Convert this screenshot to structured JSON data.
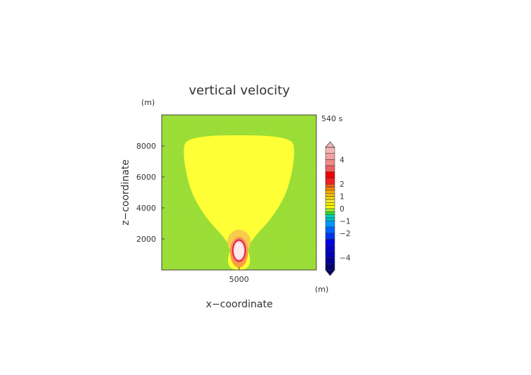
{
  "chart_data": {
    "type": "heatmap",
    "title": "vertical velocity",
    "time_label": "540 s",
    "xlabel": "x−coordinate",
    "ylabel": "z−coordinate",
    "x_unit": "(m)",
    "y_unit": "(m)",
    "xlim": [
      700,
      9300
    ],
    "ylim": [
      0,
      10000
    ],
    "x_ticks": [
      {
        "value": 5000,
        "label": "5000"
      }
    ],
    "y_ticks": [
      {
        "value": 2000,
        "label": "2000"
      },
      {
        "value": 4000,
        "label": "4000"
      },
      {
        "value": 6000,
        "label": "6000"
      },
      {
        "value": 8000,
        "label": "8000"
      }
    ],
    "colorbar": {
      "range": [
        -5,
        5
      ],
      "labels": [
        {
          "value": 4,
          "label": "4"
        },
        {
          "value": 2,
          "label": "2"
        },
        {
          "value": 1,
          "label": "1"
        },
        {
          "value": 0,
          "label": "0"
        },
        {
          "value": -1,
          "label": "−1"
        },
        {
          "value": -2,
          "label": "−2"
        },
        {
          "value": -4,
          "label": "−4"
        }
      ],
      "bands": [
        {
          "from": 4.5,
          "to": 5,
          "color": "#f5b5b5"
        },
        {
          "from": 4,
          "to": 4.5,
          "color": "#f2a0a0"
        },
        {
          "from": 3.5,
          "to": 4,
          "color": "#ee8a8a"
        },
        {
          "from": 3,
          "to": 3.5,
          "color": "#ee6060"
        },
        {
          "from": 2.5,
          "to": 3,
          "color": "#ee0000"
        },
        {
          "from": 2,
          "to": 2.5,
          "color": "#ee2020"
        },
        {
          "from": 1.75,
          "to": 2,
          "color": "#f05a1e"
        },
        {
          "from": 1.5,
          "to": 1.75,
          "color": "#f58a00"
        },
        {
          "from": 1.25,
          "to": 1.5,
          "color": "#f5a800"
        },
        {
          "from": 1,
          "to": 1.25,
          "color": "#f5bd1e"
        },
        {
          "from": 0.75,
          "to": 1,
          "color": "#f5d800"
        },
        {
          "from": 0.5,
          "to": 0.75,
          "color": "#f0e832"
        },
        {
          "from": 0.25,
          "to": 0.5,
          "color": "#f5f000"
        },
        {
          "from": 0,
          "to": 0.25,
          "color": "#ffff00"
        },
        {
          "from": -0.25,
          "to": 0,
          "color": "#a0e632"
        },
        {
          "from": -0.5,
          "to": -0.25,
          "color": "#32dc32"
        },
        {
          "from": -0.75,
          "to": -0.5,
          "color": "#00d2c8"
        },
        {
          "from": -1,
          "to": -0.75,
          "color": "#00bebe"
        },
        {
          "from": -1.5,
          "to": -1,
          "color": "#0096ff"
        },
        {
          "from": -2,
          "to": -1.5,
          "color": "#0064ff"
        },
        {
          "from": -2.5,
          "to": -2,
          "color": "#0032f0"
        },
        {
          "from": -3,
          "to": -2.5,
          "color": "#0000e6"
        },
        {
          "from": -3.5,
          "to": -3,
          "color": "#0000c8"
        },
        {
          "from": -4,
          "to": -3.5,
          "color": "#0000b4"
        },
        {
          "from": -4.5,
          "to": -4,
          "color": "#000096"
        },
        {
          "from": -5,
          "to": -4.5,
          "color": "#00006e"
        }
      ]
    },
    "field": {
      "background": {
        "value": -0.1,
        "color": "#99dd33"
      },
      "regions": [
        {
          "name": "updraft-envelope",
          "value": 0.3,
          "color": "#ffff33",
          "outline": [
            [
              1900,
              7900
            ],
            [
              2100,
              8400
            ],
            [
              3200,
              8650
            ],
            [
              5000,
              8700
            ],
            [
              6800,
              8650
            ],
            [
              7900,
              8400
            ],
            [
              8100,
              7900
            ],
            [
              8000,
              6500
            ],
            [
              7600,
              4800
            ],
            [
              6800,
              3300
            ],
            [
              5900,
              2200
            ],
            [
              5500,
              1500
            ],
            [
              5000,
              1250
            ],
            [
              4500,
              1500
            ],
            [
              4100,
              2200
            ],
            [
              3200,
              3300
            ],
            [
              2400,
              4800
            ],
            [
              2000,
              6500
            ]
          ]
        },
        {
          "name": "stem",
          "value": 0.3,
          "color": "#ffff33",
          "outline": [
            [
              4500,
              1600
            ],
            [
              5500,
              1600
            ],
            [
              5700,
              0
            ],
            [
              4300,
              0
            ]
          ]
        },
        {
          "name": "halo",
          "value": 1.2,
          "color": "#f8cc48",
          "ellipse": {
            "cx": 5000,
            "cy": 1800,
            "rx": 650,
            "ry": 800
          }
        },
        {
          "name": "core-orange",
          "value": 1.6,
          "color": "#f7a030",
          "ellipse": {
            "cx": 5000,
            "cy": 1150,
            "rx": 500,
            "ry": 1000
          }
        },
        {
          "name": "core-pink",
          "value": 2.2,
          "color": "#f08080",
          "ellipse": {
            "cx": 5000,
            "cy": 1250,
            "rx": 430,
            "ry": 800
          }
        },
        {
          "name": "core-red",
          "value": 2.8,
          "color": "#e8102a",
          "ellipse": {
            "cx": 5000,
            "cy": 1250,
            "rx": 380,
            "ry": 720
          }
        },
        {
          "name": "core-rose",
          "value": 3.8,
          "color": "#f0a0a8",
          "ellipse": {
            "cx": 5000,
            "cy": 1250,
            "rx": 320,
            "ry": 640
          }
        },
        {
          "name": "core-white",
          "value": 4.8,
          "color": "#fce8ec",
          "ellipse": {
            "cx": 5000,
            "cy": 1250,
            "rx": 280,
            "ry": 580
          }
        }
      ]
    }
  }
}
